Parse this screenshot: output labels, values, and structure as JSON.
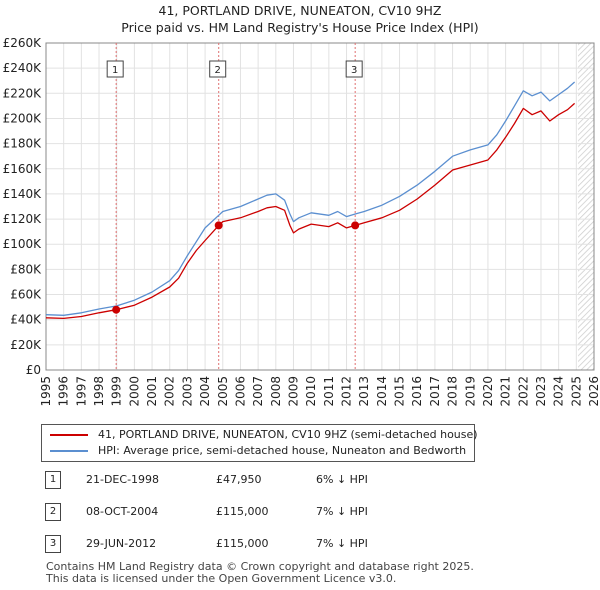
{
  "header": {
    "title": "41, PORTLAND DRIVE, NUNEATON, CV10 9HZ",
    "subtitle": "Price paid vs. HM Land Registry's House Price Index (HPI)"
  },
  "colors": {
    "property": "#cc0000",
    "hpi": "#5b8fd0",
    "marker": "#cc0000",
    "vline": "#e07070",
    "future_hatch": "#cccccc"
  },
  "legend": {
    "property_label": "41, PORTLAND DRIVE, NUNEATON, CV10 9HZ (semi-detached house)",
    "hpi_label": "HPI: Average price, semi-detached house, Nuneaton and Bedworth"
  },
  "sales": [
    {
      "num": "1",
      "date": "21-DEC-1998",
      "price": "£47,950",
      "hpi": "6% ↓ HPI"
    },
    {
      "num": "2",
      "date": "08-OCT-2004",
      "price": "£115,000",
      "hpi": "7% ↓ HPI"
    },
    {
      "num": "3",
      "date": "29-JUN-2012",
      "price": "£115,000",
      "hpi": "7% ↓ HPI"
    }
  ],
  "footer": {
    "line1": "Contains HM Land Registry data © Crown copyright and database right 2025.",
    "line2": "This data is licensed under the Open Government Licence v3.0."
  },
  "chart_data": {
    "type": "line",
    "title": "41, PORTLAND DRIVE, NUNEATON, CV10 9HZ",
    "subtitle": "Price paid vs. HM Land Registry's House Price Index (HPI)",
    "xlabel": "",
    "ylabel": "",
    "xlim": [
      1995,
      2026
    ],
    "ylim": [
      0,
      260000
    ],
    "yticks": [
      0,
      20000,
      40000,
      60000,
      80000,
      100000,
      120000,
      140000,
      160000,
      180000,
      200000,
      220000,
      240000,
      260000
    ],
    "ytick_labels": [
      "£0",
      "£20K",
      "£40K",
      "£60K",
      "£80K",
      "£100K",
      "£120K",
      "£140K",
      "£160K",
      "£180K",
      "£200K",
      "£220K",
      "£240K",
      "£260K"
    ],
    "xticks": [
      1995,
      1996,
      1997,
      1998,
      1999,
      2000,
      2001,
      2002,
      2003,
      2004,
      2005,
      2006,
      2007,
      2008,
      2009,
      2010,
      2011,
      2012,
      2013,
      2014,
      2015,
      2016,
      2017,
      2018,
      2019,
      2020,
      2021,
      2022,
      2023,
      2024,
      2025,
      2026
    ],
    "grid": true,
    "forecast_from": 2025.1,
    "sale_markers": [
      {
        "label": "1",
        "x": 1998.97,
        "y": 47950
      },
      {
        "label": "2",
        "x": 2004.77,
        "y": 115000
      },
      {
        "label": "3",
        "x": 2012.49,
        "y": 115000
      }
    ],
    "series": [
      {
        "name": "41, PORTLAND DRIVE, NUNEATON, CV10 9HZ (semi-detached house)",
        "color": "#cc0000",
        "points": [
          [
            1995,
            41500
          ],
          [
            1996,
            41000
          ],
          [
            1997,
            42500
          ],
          [
            1998,
            45500
          ],
          [
            1998.97,
            47950
          ],
          [
            2000,
            51500
          ],
          [
            2001,
            58000
          ],
          [
            2002,
            66000
          ],
          [
            2002.5,
            73000
          ],
          [
            2003,
            85000
          ],
          [
            2003.5,
            95000
          ],
          [
            2004,
            103000
          ],
          [
            2004.77,
            115000
          ],
          [
            2005,
            118000
          ],
          [
            2006,
            121000
          ],
          [
            2007,
            126000
          ],
          [
            2007.5,
            129000
          ],
          [
            2008,
            130000
          ],
          [
            2008.5,
            127000
          ],
          [
            2008.8,
            115000
          ],
          [
            2009,
            109000
          ],
          [
            2009.3,
            112000
          ],
          [
            2010,
            116000
          ],
          [
            2011,
            114000
          ],
          [
            2011.5,
            117000
          ],
          [
            2012,
            113000
          ],
          [
            2012.49,
            115000
          ],
          [
            2013,
            117000
          ],
          [
            2014,
            121000
          ],
          [
            2015,
            127000
          ],
          [
            2016,
            136000
          ],
          [
            2017,
            147000
          ],
          [
            2018,
            159000
          ],
          [
            2019,
            163000
          ],
          [
            2020,
            167000
          ],
          [
            2020.5,
            175000
          ],
          [
            2021,
            185000
          ],
          [
            2021.5,
            196000
          ],
          [
            2022,
            208000
          ],
          [
            2022.5,
            203000
          ],
          [
            2023,
            206000
          ],
          [
            2023.5,
            198000
          ],
          [
            2024,
            203000
          ],
          [
            2024.5,
            207000
          ],
          [
            2024.9,
            212000
          ]
        ]
      },
      {
        "name": "HPI: Average price, semi-detached house, Nuneaton and Bedworth",
        "color": "#5b8fd0",
        "points": [
          [
            1995,
            44000
          ],
          [
            1996,
            43500
          ],
          [
            1997,
            45500
          ],
          [
            1998,
            48500
          ],
          [
            1999,
            51000
          ],
          [
            2000,
            55500
          ],
          [
            2001,
            62000
          ],
          [
            2002,
            71000
          ],
          [
            2002.5,
            79000
          ],
          [
            2003,
            91000
          ],
          [
            2003.5,
            102000
          ],
          [
            2004,
            113000
          ],
          [
            2004.77,
            123000
          ],
          [
            2005,
            126000
          ],
          [
            2006,
            130000
          ],
          [
            2007,
            136000
          ],
          [
            2007.5,
            139000
          ],
          [
            2008,
            140000
          ],
          [
            2008.5,
            135000
          ],
          [
            2008.8,
            124000
          ],
          [
            2009,
            118000
          ],
          [
            2009.3,
            121000
          ],
          [
            2010,
            125000
          ],
          [
            2011,
            123000
          ],
          [
            2011.5,
            126000
          ],
          [
            2012,
            122000
          ],
          [
            2012.49,
            124000
          ],
          [
            2013,
            126000
          ],
          [
            2014,
            131000
          ],
          [
            2015,
            138000
          ],
          [
            2016,
            147000
          ],
          [
            2017,
            158000
          ],
          [
            2018,
            170000
          ],
          [
            2019,
            175000
          ],
          [
            2020,
            179000
          ],
          [
            2020.5,
            187000
          ],
          [
            2021,
            198000
          ],
          [
            2021.5,
            210000
          ],
          [
            2022,
            222000
          ],
          [
            2022.5,
            218000
          ],
          [
            2023,
            221000
          ],
          [
            2023.5,
            214000
          ],
          [
            2024,
            219000
          ],
          [
            2024.5,
            224000
          ],
          [
            2024.9,
            229000
          ]
        ]
      }
    ]
  }
}
